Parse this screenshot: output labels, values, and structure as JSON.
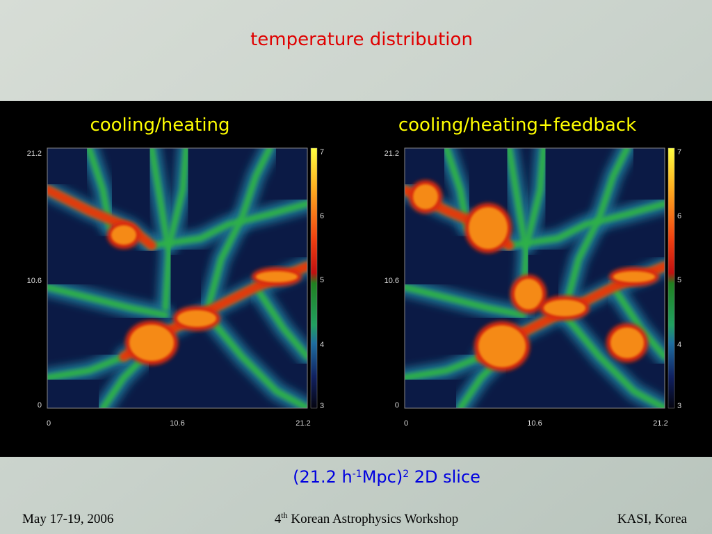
{
  "title": "temperature distribution",
  "panels": [
    {
      "title": "cooling/heating",
      "y_ticks": [
        21.2,
        10.6,
        0
      ],
      "x_ticks": [
        0,
        10.6,
        21.2
      ],
      "colorbar_ticks": [
        7,
        6,
        5,
        4,
        3
      ]
    },
    {
      "title": "cooling/heating+feedback",
      "y_ticks": [
        21.2,
        10.6,
        0
      ],
      "x_ticks": [
        0,
        10.6,
        21.2
      ],
      "colorbar_ticks": [
        7,
        6,
        5,
        4,
        3
      ]
    }
  ],
  "caption": {
    "parts": [
      "(21.2 h",
      "-1",
      "Mpc)",
      "2",
      " 2D slice"
    ]
  },
  "footer": {
    "date": "May 17-19, 2006",
    "event": {
      "parts": [
        "4",
        "th",
        " Korean Astrophysics Workshop"
      ]
    },
    "venue": "KASI, Korea"
  }
}
